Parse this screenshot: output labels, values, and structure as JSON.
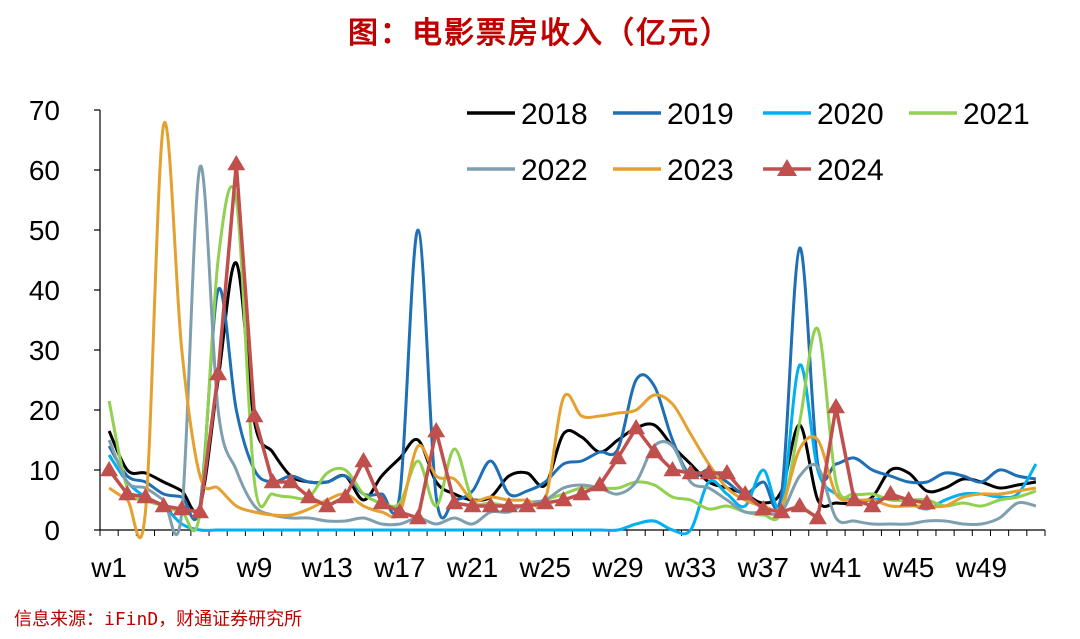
{
  "title": "图：电影票房收入（亿元）",
  "source": "信息来源：iFinD，财通证券研究所",
  "chart_data": {
    "type": "line",
    "title": "图：电影票房收入（亿元）",
    "xlabel": "",
    "ylabel": "",
    "ylim": [
      0,
      70
    ],
    "yticks": [
      0,
      10,
      20,
      30,
      40,
      50,
      60,
      70
    ],
    "x": [
      "w1",
      "w2",
      "w3",
      "w4",
      "w5",
      "w6",
      "w7",
      "w8",
      "w9",
      "w10",
      "w11",
      "w12",
      "w13",
      "w14",
      "w15",
      "w16",
      "w17",
      "w18",
      "w19",
      "w20",
      "w21",
      "w22",
      "w23",
      "w24",
      "w25",
      "w26",
      "w27",
      "w28",
      "w29",
      "w30",
      "w31",
      "w32",
      "w33",
      "w34",
      "w35",
      "w36",
      "w37",
      "w38",
      "w39",
      "w40",
      "w41",
      "w42",
      "w43",
      "w44",
      "w45",
      "w46",
      "w47",
      "w48",
      "w49",
      "w50",
      "w51",
      "w52"
    ],
    "xtick_labels": [
      "w1",
      "w5",
      "w9",
      "w13",
      "w17",
      "w21",
      "w25",
      "w29",
      "w33",
      "w37",
      "w41",
      "w45",
      "w49"
    ],
    "legend_position": "top-right",
    "grid": false,
    "series": [
      {
        "name": "2018",
        "color": "#000000",
        "marker": "none",
        "values": [
          16.5,
          10,
          9.5,
          8,
          6.5,
          4,
          25,
          44.5,
          18,
          13,
          9,
          8,
          8,
          9,
          5,
          9,
          12,
          15,
          8,
          6,
          5,
          5.5,
          9,
          9.5,
          7.5,
          16,
          15.5,
          13,
          15,
          17,
          17.5,
          14,
          11,
          8,
          7,
          6,
          4.5,
          6.5,
          17.5,
          5,
          4.5,
          4.5,
          5.5,
          10,
          9.5,
          6.5,
          7,
          8.5,
          8,
          7,
          7.5,
          8
        ]
      },
      {
        "name": "2019",
        "color": "#1f6fb5",
        "marker": "none",
        "values": [
          14,
          9,
          8,
          6,
          5.5,
          4,
          40,
          20,
          10,
          8,
          9,
          8,
          8,
          9,
          6,
          6,
          6,
          50,
          5.5,
          5,
          6.5,
          11.5,
          6,
          6.5,
          8,
          11,
          11.5,
          13,
          13.5,
          25,
          24,
          15,
          9,
          10,
          8,
          6,
          8,
          6,
          47,
          11,
          11,
          12,
          10,
          9,
          8,
          8,
          9.5,
          9,
          8,
          10,
          9,
          8.5
        ]
      },
      {
        "name": "2020",
        "color": "#00b0f0",
        "marker": "none",
        "values": [
          12.5,
          8,
          5.5,
          4,
          1,
          0,
          0,
          0,
          0,
          0,
          0,
          0,
          0,
          0,
          0,
          0,
          0,
          0,
          0,
          0,
          0,
          0,
          0,
          0,
          0,
          0,
          0,
          0,
          0,
          1,
          1.5,
          0,
          0,
          8,
          6,
          4,
          10,
          4,
          27.5,
          10,
          6,
          5,
          5,
          5.5,
          4.5,
          3.5,
          5,
          6,
          6,
          5.5,
          6,
          11
        ]
      },
      {
        "name": "2021",
        "color": "#92d050",
        "marker": "none",
        "values": [
          21.5,
          7,
          5,
          4,
          3,
          3,
          45,
          55,
          8,
          6,
          5.5,
          5.5,
          9.5,
          10,
          6,
          4.5,
          4.5,
          11.5,
          4,
          13.5,
          5,
          4.5,
          4,
          4,
          5,
          6,
          7,
          7,
          7,
          8,
          7.5,
          5.5,
          5,
          3.5,
          4,
          3,
          2.5,
          3,
          18,
          33.5,
          8,
          6,
          6,
          5,
          5,
          5,
          4,
          4.5,
          4,
          5,
          5.5,
          6.5
        ]
      },
      {
        "name": "2022",
        "color": "#7f9fb0",
        "marker": "none",
        "values": [
          15,
          8,
          7,
          5,
          3,
          60.5,
          20,
          10,
          4,
          2.5,
          2,
          2,
          1.5,
          1.5,
          2,
          1,
          1,
          2,
          1,
          2,
          1,
          3,
          3,
          4.5,
          5,
          7,
          7.5,
          7,
          6,
          8,
          14,
          14,
          8,
          7,
          5,
          3,
          3,
          3,
          9,
          10.5,
          2,
          1.5,
          1,
          1,
          1,
          1.5,
          1.5,
          1,
          1,
          2,
          4.5,
          4
        ]
      },
      {
        "name": "2023",
        "color": "#e5a12f",
        "marker": "none",
        "values": [
          7,
          5,
          3,
          67.5,
          30,
          9,
          7,
          4,
          3,
          2.5,
          2.5,
          3.5,
          5,
          6,
          4,
          3,
          3,
          14,
          9,
          8.5,
          5,
          5.5,
          5,
          5,
          5,
          22,
          19,
          19,
          19.5,
          20,
          22.5,
          21,
          16,
          11,
          7,
          5,
          4,
          4,
          13.5,
          15,
          6,
          5,
          5,
          4,
          4,
          4,
          4,
          5.5,
          6,
          6,
          6.5,
          7
        ]
      },
      {
        "name": "2024",
        "color": "#c0504d",
        "marker": "triangle",
        "values": [
          10,
          6,
          5.5,
          4,
          3.5,
          3,
          26,
          61,
          19,
          8,
          8,
          5.5,
          4,
          5.5,
          11.5,
          4.5,
          3,
          2,
          16.5,
          4.5,
          4,
          4,
          4,
          4,
          4.5,
          5,
          6,
          7.5,
          12,
          17,
          13,
          10,
          9.5,
          9.5,
          9.5,
          6,
          3.5,
          3,
          4,
          2,
          20.5,
          5,
          4,
          6,
          5,
          4.5,
          null,
          null,
          null,
          null,
          null,
          null
        ]
      }
    ]
  }
}
